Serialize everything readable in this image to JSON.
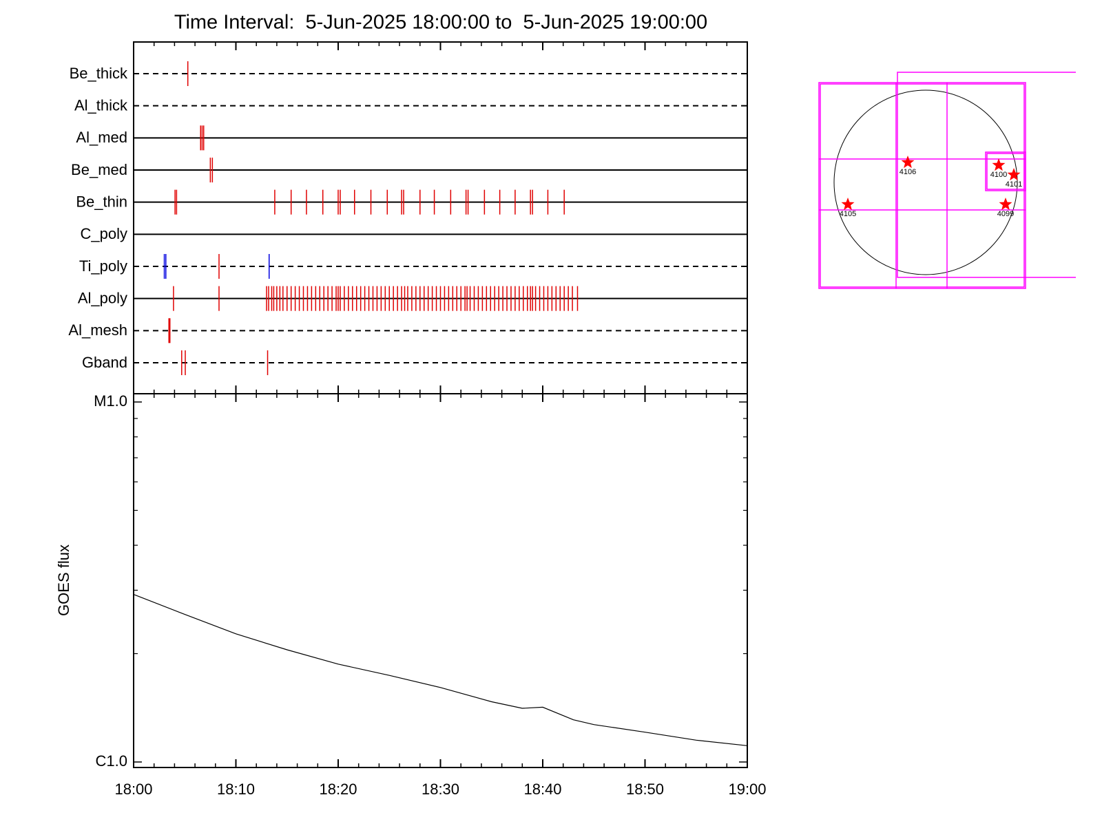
{
  "chart_data": [
    {
      "type": "timeline",
      "title": "Time Interval:  5-Jun-2025 18:00:00 to  5-Jun-2025 19:00:00",
      "xlim": [
        0,
        60
      ],
      "xticks": [
        0,
        10,
        20,
        30,
        40,
        50,
        60
      ],
      "xminorticks": [
        2,
        4,
        6,
        8,
        12,
        14,
        16,
        18,
        22,
        24,
        26,
        28,
        32,
        34,
        36,
        38,
        42,
        44,
        46,
        48,
        52,
        54,
        56,
        58
      ],
      "rows": [
        {
          "label": "Be_thick",
          "line": "dashed",
          "series": [
            {
              "color": "#e00000",
              "values": [
                5.3
              ]
            }
          ]
        },
        {
          "label": "Al_thick",
          "line": "dashed",
          "series": []
        },
        {
          "label": "Al_med",
          "line": "solid",
          "series": [
            {
              "color": "#e00000",
              "values": [
                6.55,
                6.7,
                6.85
              ]
            }
          ]
        },
        {
          "label": "Be_med",
          "line": "solid",
          "series": [
            {
              "color": "#e00000",
              "values": [
                7.5,
                7.7
              ]
            }
          ]
        },
        {
          "label": "Be_thin",
          "line": "solid",
          "series": [
            {
              "color": "#e00000",
              "values": [
                4.05,
                4.2,
                13.8,
                15.4,
                16.9,
                18.5,
                20.0,
                20.2,
                21.6,
                23.2,
                24.8,
                26.2,
                26.4,
                28.0,
                29.4,
                31.0,
                32.5,
                32.7,
                34.3,
                35.8,
                37.3,
                38.8,
                39.0,
                40.5,
                42.1
              ]
            }
          ]
        },
        {
          "label": "C_poly",
          "line": "solid",
          "series": []
        },
        {
          "label": "Ti_poly",
          "line": "dashed",
          "series": [
            {
              "color": "#0000e0",
              "values": [
                3.0,
                3.15,
                13.25
              ]
            },
            {
              "color": "#e00000",
              "values": [
                8.35
              ]
            }
          ]
        },
        {
          "label": "Al_poly",
          "line": "solid",
          "series": [
            {
              "color": "#e00000",
              "values": [
                3.9,
                8.35,
                13.0,
                13.2,
                13.5,
                13.7,
                14.0,
                14.3,
                14.6,
                15.0,
                15.4,
                15.8,
                16.2,
                16.6,
                17.0,
                17.4,
                17.8,
                18.2,
                18.6,
                19.0,
                19.4,
                19.8,
                20.0,
                20.2,
                20.6,
                21.0,
                21.4,
                21.8,
                22.2,
                22.6,
                23.0,
                23.4,
                23.8,
                24.2,
                24.6,
                25.0,
                25.4,
                25.8,
                26.2,
                26.5,
                26.8,
                27.2,
                27.6,
                28.0,
                28.4,
                28.8,
                29.2,
                29.6,
                30.0,
                30.4,
                30.8,
                31.2,
                31.6,
                32.0,
                32.4,
                32.6,
                32.9,
                33.3,
                33.7,
                34.1,
                34.5,
                34.9,
                35.3,
                35.7,
                36.1,
                36.5,
                36.9,
                37.3,
                37.7,
                38.1,
                38.5,
                38.8,
                39.0,
                39.3,
                39.7,
                40.1,
                40.5,
                40.9,
                41.3,
                41.7,
                42.1,
                42.5,
                42.9,
                43.4
              ]
            }
          ]
        },
        {
          "label": "Al_mesh",
          "line": "dashed",
          "series": [
            {
              "color": "#e00000",
              "values": [
                3.45,
                3.55
              ]
            }
          ]
        },
        {
          "label": "Gband",
          "line": "dashed",
          "series": [
            {
              "color": "#e00000",
              "values": [
                4.7,
                5.05,
                13.1
              ]
            }
          ]
        }
      ]
    },
    {
      "type": "line",
      "ylabel": "GOES flux",
      "log_y": true,
      "color": "#000000",
      "xlim": [
        0,
        60
      ],
      "xticks": [
        {
          "value": 0,
          "label": "18:00"
        },
        {
          "value": 10,
          "label": "18:10"
        },
        {
          "value": 20,
          "label": "18:20"
        },
        {
          "value": 30,
          "label": "18:30"
        },
        {
          "value": 40,
          "label": "18:40"
        },
        {
          "value": 50,
          "label": "18:50"
        },
        {
          "value": 60,
          "label": "19:00"
        }
      ],
      "ylim": [
        1e-06,
        1e-05
      ],
      "yticks": [
        {
          "value": 1e-06,
          "label": "C1.0"
        },
        {
          "value": 1e-05,
          "label": "M1.0"
        }
      ],
      "yminorticks": [
        2e-06,
        3e-06,
        4e-06,
        5e-06,
        6e-06,
        7e-06,
        8e-06,
        9e-06
      ],
      "x": [
        0,
        5,
        10,
        15,
        20,
        25,
        30,
        35,
        38,
        40,
        43,
        45,
        50,
        55,
        60
      ],
      "values": [
        2.92e-06,
        2.57e-06,
        2.27e-06,
        2.05e-06,
        1.87e-06,
        1.74e-06,
        1.61e-06,
        1.47e-06,
        1.41e-06,
        1.42e-06,
        1.31e-06,
        1.27e-06,
        1.21e-06,
        1.15e-06,
        1.11e-06
      ]
    }
  ],
  "sun_map": {
    "regions": [
      "4106",
      "4100",
      "4101",
      "4105",
      "4099"
    ]
  }
}
